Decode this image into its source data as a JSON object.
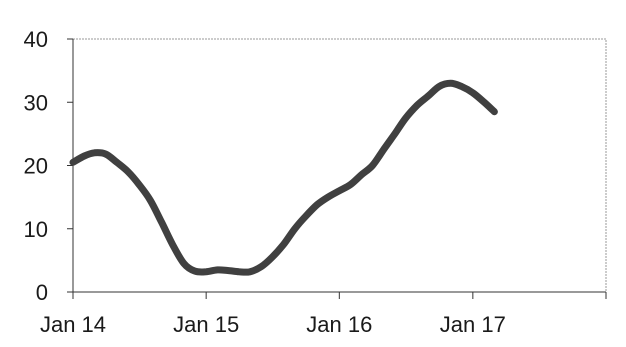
{
  "chart_data": {
    "type": "line",
    "title": "",
    "xlabel": "",
    "ylabel": "",
    "x_ticks": [
      "Jan 14",
      "Jan 15",
      "Jan 16",
      "Jan 17"
    ],
    "y_ticks": [
      "0",
      "10",
      "20",
      "30",
      "40"
    ],
    "ylim": [
      0,
      40
    ],
    "xlim": [
      "2014-01-01",
      "2018-01-01"
    ],
    "grid": false,
    "legend": "none",
    "series": [
      {
        "color": "#404040",
        "x": [
          "2014-01-01",
          "2014-02-01",
          "2014-03-01",
          "2014-04-01",
          "2014-05-01",
          "2014-06-01",
          "2014-07-01",
          "2014-08-01",
          "2014-09-01",
          "2014-10-01",
          "2014-11-01",
          "2014-12-01",
          "2015-01-01",
          "2015-02-01",
          "2015-03-01",
          "2015-04-01",
          "2015-05-01",
          "2015-06-01",
          "2015-07-01",
          "2015-08-01",
          "2015-09-01",
          "2015-10-01",
          "2015-11-01",
          "2015-12-01",
          "2016-01-01",
          "2016-02-01",
          "2016-03-01",
          "2016-04-01",
          "2016-05-01",
          "2016-06-01",
          "2016-07-01",
          "2016-08-01",
          "2016-09-01",
          "2016-10-01",
          "2016-11-01",
          "2016-12-01",
          "2017-01-01",
          "2017-02-01",
          "2017-03-01"
        ],
        "y": [
          20.5,
          21.5,
          22,
          21.8,
          20.5,
          19,
          17,
          14.5,
          11,
          7.5,
          4.5,
          3.3,
          3.2,
          3.5,
          3.4,
          3.2,
          3.2,
          4,
          5.5,
          7.5,
          10,
          12,
          13.8,
          15,
          16,
          17,
          18.5,
          20,
          22.5,
          25,
          27.5,
          29.5,
          31,
          32.5,
          33,
          32.5,
          31.5,
          30,
          28.5
        ]
      }
    ]
  }
}
